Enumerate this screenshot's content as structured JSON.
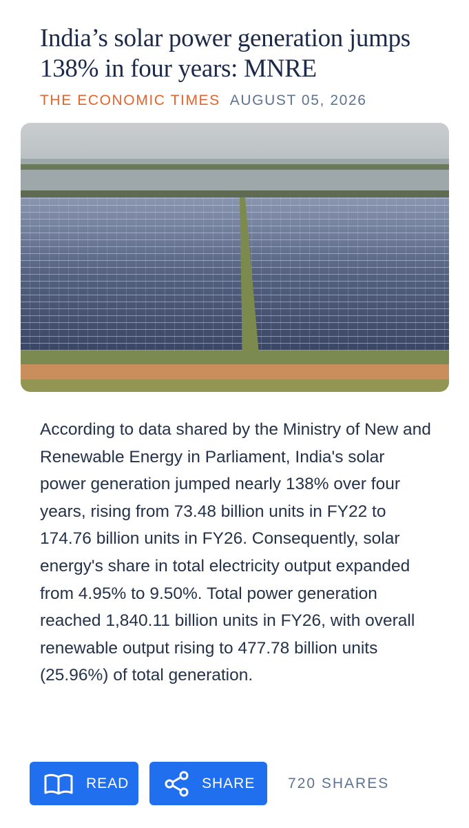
{
  "header": {
    "title": "India’s solar power generation jumps 138% in four years: MNRE",
    "source": "THE ECONOMIC TIMES",
    "date": "AUGUST 05, 2026"
  },
  "article": {
    "body": "According to data shared by the Ministry of New and Renewable Energy in Parliament, India's solar power generation jumped nearly 138% over four years, rising from 73.48 billion units in FY22 to 174.76 billion units in FY26. Consequently, solar energy's share in total electricity output expanded from 4.95% to 9.50%. Total power generation reached 1,840.11 billion units in FY26, with overall renewable output rising to 477.78 billion units (25.96%) of total generation."
  },
  "actions": {
    "read": "READ",
    "share": "SHARE",
    "shares_count": "720 SHARES"
  }
}
